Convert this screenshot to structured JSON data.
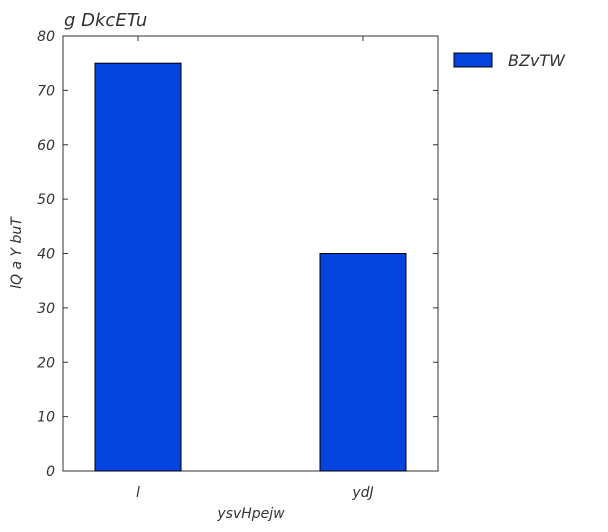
{
  "chart_data": {
    "type": "bar",
    "title": "g DkcETu",
    "xlabel": "ysvHpejw",
    "ylabel": "lQ a Y buT",
    "categories": [
      "l",
      "ydJ"
    ],
    "series": [
      {
        "name": "BZvTW",
        "values": [
          75,
          40
        ],
        "color": "#0343df"
      }
    ],
    "ylim": [
      0,
      80
    ],
    "yticks": [
      0,
      10,
      20,
      30,
      40,
      50,
      60,
      70,
      80
    ],
    "grid": false,
    "legend_position": "outside-top-right"
  }
}
